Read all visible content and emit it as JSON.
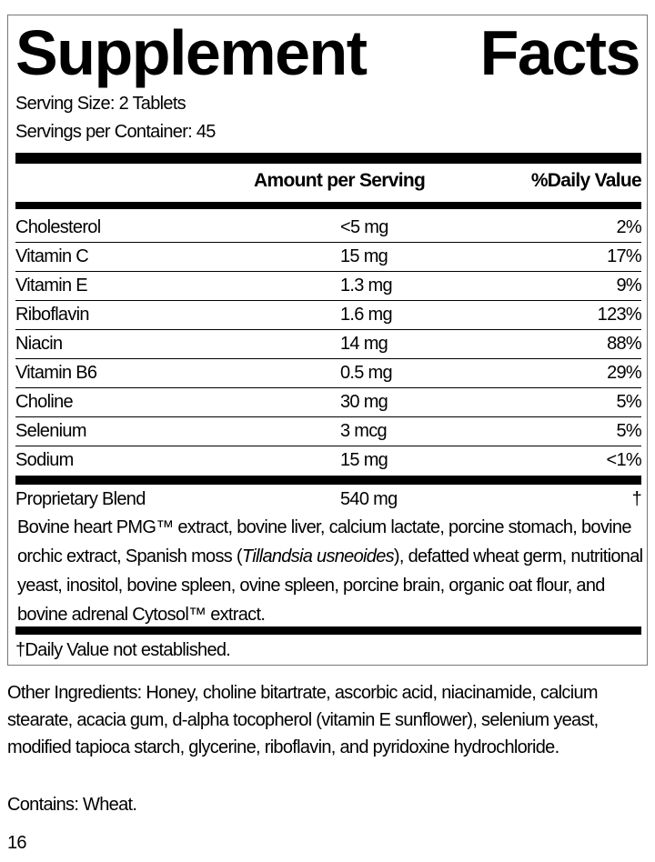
{
  "title_words": [
    "Supplement",
    "Facts"
  ],
  "serving_size": "Serving Size: 2 Tablets",
  "servings_per_container": "Servings per Container: 45",
  "header": {
    "amount": "Amount per Serving",
    "daily_value": "%Daily Value"
  },
  "rows": [
    {
      "name": "Cholesterol",
      "amount": "<5 mg",
      "dv": "2%"
    },
    {
      "name": "Vitamin C",
      "amount": "15 mg",
      "dv": "17%"
    },
    {
      "name": "Vitamin E",
      "amount": "1.3 mg",
      "dv": "9%"
    },
    {
      "name": "Riboflavin",
      "amount": "1.6 mg",
      "dv": "123%"
    },
    {
      "name": "Niacin",
      "amount": "14 mg",
      "dv": "88%"
    },
    {
      "name": "Vitamin B6",
      "amount": "0.5 mg",
      "dv": "29%"
    },
    {
      "name": "Choline",
      "amount": "30 mg",
      "dv": "5%"
    },
    {
      "name": "Selenium",
      "amount": "3 mcg",
      "dv": "5%"
    },
    {
      "name": "Sodium",
      "amount": "15 mg",
      "dv": "<1%"
    }
  ],
  "blend": {
    "name": "Proprietary Blend",
    "amount": "540 mg",
    "dv": "†",
    "ingredients_before": "Bovine heart PMG™ extract, bovine liver, calcium lactate, porcine stomach, bovine orchic extract, Spanish moss (",
    "ingredients_italic": "Tillandsia usneoides",
    "ingredients_after": "), defatted wheat germ, nutritional yeast, inositol, bovine spleen, ovine spleen, porcine brain, organic oat flour, and bovine adrenal Cytosol™ extract."
  },
  "footnote": "†Daily Value not established.",
  "other_ingredients": "Other Ingredients: Honey, choline bitartrate, ascorbic acid, niacinamide, calcium stearate, acacia gum, d-alpha tocopherol (vitamin E sunflower), selenium yeast, modified tapioca starch, glycerine, riboflavin, and pyridoxine hydrochloride.",
  "contains": "Contains: Wheat.",
  "page_number": "16"
}
